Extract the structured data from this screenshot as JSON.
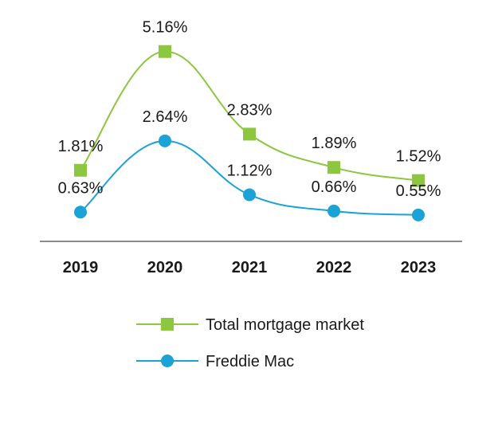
{
  "chart_data": {
    "type": "line",
    "categories": [
      "2019",
      "2020",
      "2021",
      "2022",
      "2023"
    ],
    "series": [
      {
        "name": "Total mortgage market",
        "values": [
          1.81,
          5.16,
          2.83,
          1.89,
          1.52
        ],
        "labels": [
          "1.81%",
          "5.16%",
          "2.83%",
          "1.89%",
          "1.52%"
        ],
        "color": "#8dc63f",
        "marker": "square"
      },
      {
        "name": "Freddie Mac",
        "values": [
          0.63,
          2.64,
          1.12,
          0.66,
          0.55
        ],
        "labels": [
          "0.63%",
          "2.64%",
          "1.12%",
          "0.66%",
          "0.55%"
        ],
        "color": "#1ba3d8",
        "marker": "circle"
      }
    ],
    "axis_color": "#8c8c8c",
    "grid": false,
    "legend": "bottom",
    "y_axis_visible": false
  }
}
